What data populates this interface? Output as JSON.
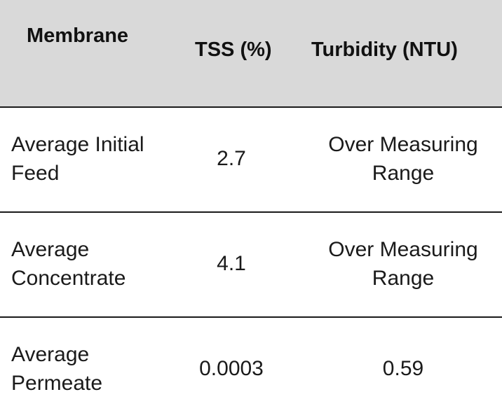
{
  "headers": {
    "membrane": "Membrane",
    "tss": "TSS (%)",
    "turbidity": "Turbidity (NTU)"
  },
  "rows": [
    {
      "label": "Average Initial Feed",
      "tss": "2.7",
      "turbidity": "Over Measuring Range"
    },
    {
      "label": "Average Concentrate",
      "tss": "4.1",
      "turbidity": "Over Measuring Range"
    },
    {
      "label": "Average Permeate",
      "tss": "0.0003",
      "turbidity": "0.59"
    }
  ],
  "colors": {
    "header_bg": "#d9d9d9",
    "rule": "#1a1a1a",
    "text": "#1a1a1a"
  }
}
